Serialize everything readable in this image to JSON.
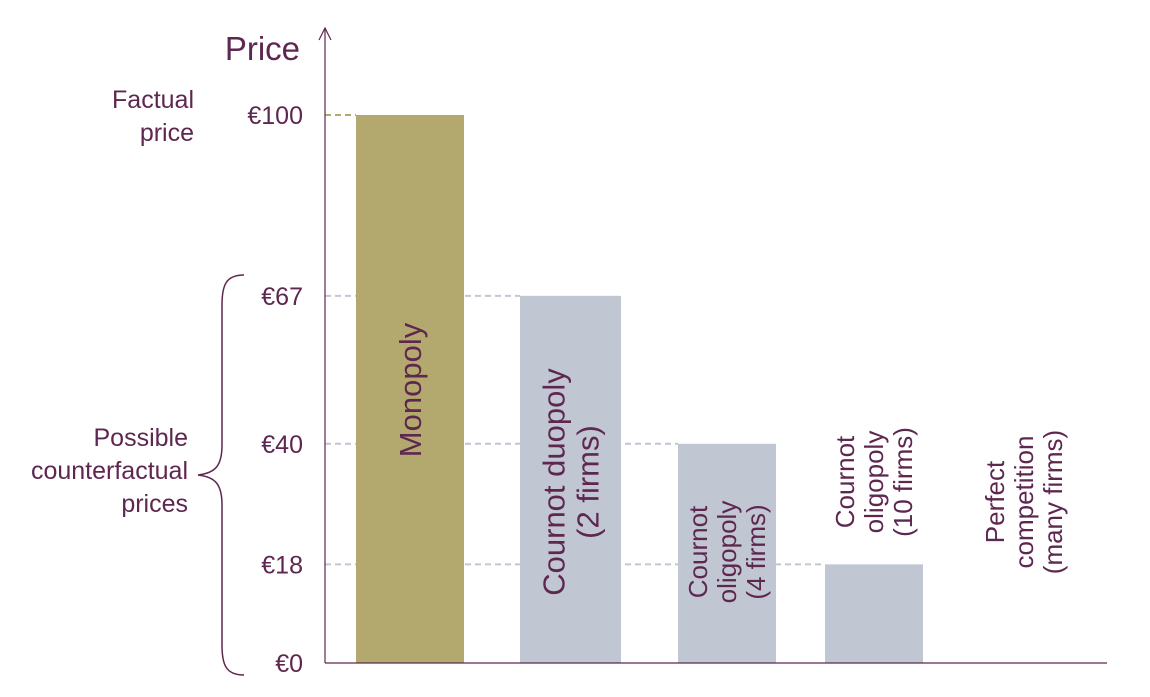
{
  "chart_data": {
    "type": "bar",
    "title": "",
    "ylabel": "Price",
    "xlabel": "",
    "ylim": [
      0,
      110
    ],
    "currency_prefix": "€",
    "yticks": [
      0,
      18,
      40,
      67,
      100
    ],
    "ytick_labels": [
      "€0",
      "€18",
      "€40",
      "€67",
      "€100"
    ],
    "categories": [
      [
        "Monopoly"
      ],
      [
        "Cournot duopoly",
        "(2 firms)"
      ],
      [
        "Cournot",
        "oligopoly",
        "(4 firms)"
      ],
      [
        "Cournot",
        "oligopoly",
        "(10 firms)"
      ],
      [
        "Perfect",
        "competition",
        "(many firms)"
      ]
    ],
    "values": [
      100,
      67,
      40,
      18,
      0
    ],
    "bar_colors": [
      "#b3a96e",
      "#c1c6d3",
      "#c1c6d3",
      "#c1c6d3",
      "#c1c6d3"
    ],
    "factual_line_color": "#b3a96e",
    "counterfactual_line_color": "#c1c6d3",
    "text_color": "#5e2750",
    "axis_color": "#5e2750",
    "annotations": [
      {
        "lines": [
          "Factual",
          "price"
        ],
        "value": 100
      },
      {
        "lines": [
          "Possible",
          "counterfactual",
          "prices"
        ],
        "range": [
          0,
          67
        ]
      }
    ]
  }
}
